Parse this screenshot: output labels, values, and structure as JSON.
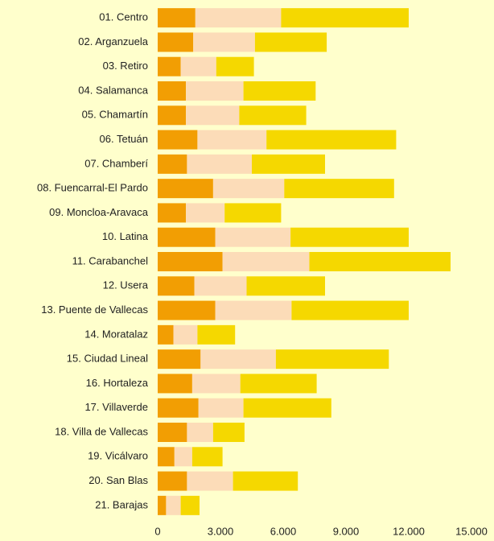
{
  "chart_data": {
    "type": "stacked-bar",
    "orientation": "horizontal",
    "categories": [
      "01. Centro",
      "02. Arganzuela",
      "03. Retiro",
      "04. Salamanca",
      "05. Chamartín",
      "06. Tetuán",
      "07. Chamberí",
      "08. Fuencarral-El Pardo",
      "09. Moncloa-Aravaca",
      "10. Latina",
      "11. Carabanchel",
      "12. Usera",
      "13. Puente de Vallecas",
      "14. Moratalaz",
      "15. Ciudad Lineal",
      "16. Hortaleza",
      "17. Villaverde",
      "18. Villa de Vallecas",
      "19. Vicálvaro",
      "20. San Blas",
      "21. Barajas"
    ],
    "series": [
      {
        "color": "#f29e03",
        "values": [
          1800,
          1700,
          1100,
          1350,
          1350,
          1900,
          1400,
          2650,
          1350,
          2750,
          3100,
          1750,
          2750,
          750,
          2050,
          1650,
          1950,
          1400,
          800,
          1400,
          400
        ]
      },
      {
        "color": "#fcdcb8",
        "values": [
          4100,
          2950,
          1700,
          2750,
          2550,
          3300,
          3100,
          3400,
          1850,
          3600,
          4150,
          2500,
          3650,
          1150,
          3600,
          2300,
          2150,
          1250,
          850,
          2200,
          700
        ]
      },
      {
        "color": "#f5d800",
        "values": [
          6100,
          3430,
          1800,
          3450,
          3200,
          6200,
          3500,
          5250,
          2700,
          5650,
          6750,
          3750,
          5600,
          1800,
          5400,
          3650,
          4200,
          1500,
          1450,
          3100,
          900
        ]
      }
    ],
    "xlim": [
      0,
      15000
    ],
    "xticks": [
      0,
      {
        "value": 3000,
        "label": "3.000"
      },
      {
        "value": 6000,
        "label": "6.000"
      },
      {
        "value": 9000,
        "label": "9.000"
      },
      {
        "value": 12000,
        "label": "12.000"
      },
      {
        "value": 15000,
        "label": "15.000"
      }
    ]
  }
}
